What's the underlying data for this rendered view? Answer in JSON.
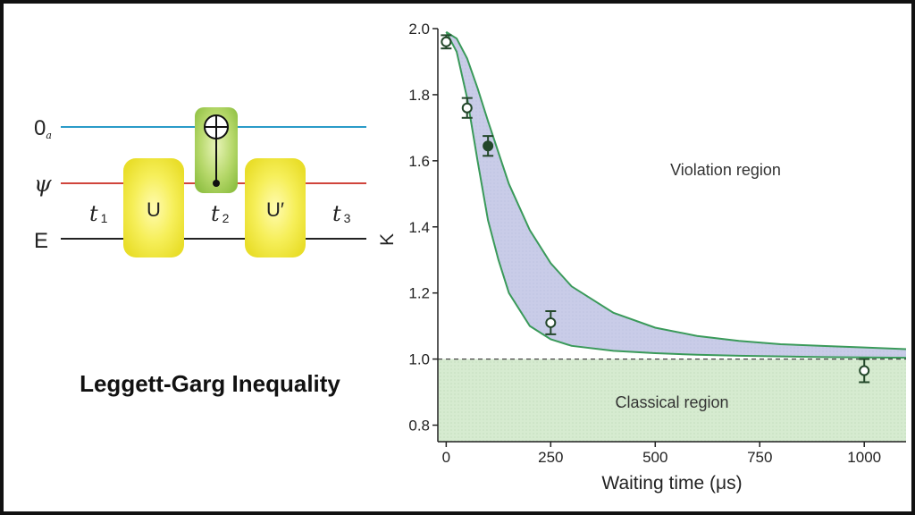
{
  "slide": {
    "caption": "Leggett-Garg Inequality"
  },
  "circuit": {
    "wires": [
      {
        "label": "0",
        "sub": "a",
        "color": "#2a9bc8"
      },
      {
        "label": "ψ",
        "sub": "",
        "color": "#d0443c"
      },
      {
        "label": "E",
        "sub": "",
        "color": "#222222"
      }
    ],
    "gates": [
      "U",
      "U′"
    ],
    "times": [
      {
        "base": "t",
        "sub": "1"
      },
      {
        "base": "t",
        "sub": "2"
      },
      {
        "base": "t",
        "sub": "3"
      }
    ],
    "colors": {
      "gate_yellow": "#f3ec3c",
      "cnot_green": "#9fcc4f"
    }
  },
  "chart_data": {
    "type": "line",
    "xlabel": "Waiting time (μs)",
    "ylabel": "K",
    "xlim": [
      -20,
      1100
    ],
    "ylim": [
      0.75,
      2.0
    ],
    "xticks": [
      0,
      250,
      500,
      750,
      1000
    ],
    "xtick_labels": [
      "0",
      "250",
      "500",
      "750",
      "1000"
    ],
    "yticks": [
      0.8,
      1.0,
      1.2,
      1.4,
      1.6,
      1.8,
      2.0
    ],
    "ytick_labels": [
      "0.8",
      "1.0",
      "1.2",
      "1.4",
      "1.6",
      "1.8",
      "2.0"
    ],
    "band_upper": {
      "x": [
        0,
        25,
        50,
        75,
        100,
        150,
        200,
        250,
        300,
        400,
        500,
        600,
        700,
        800,
        900,
        1000,
        1100
      ],
      "y": [
        1.99,
        1.97,
        1.91,
        1.82,
        1.72,
        1.53,
        1.39,
        1.29,
        1.22,
        1.14,
        1.095,
        1.07,
        1.055,
        1.045,
        1.04,
        1.035,
        1.03
      ]
    },
    "band_lower": {
      "x": [
        0,
        25,
        50,
        75,
        100,
        125,
        150,
        200,
        250,
        300,
        400,
        500,
        600,
        700,
        800,
        900,
        1000,
        1100
      ],
      "y": [
        1.99,
        1.93,
        1.79,
        1.6,
        1.42,
        1.3,
        1.2,
        1.1,
        1.06,
        1.04,
        1.025,
        1.018,
        1.013,
        1.01,
        1.008,
        1.006,
        1.005,
        1.004
      ]
    },
    "points": [
      {
        "x": 0,
        "y": 1.96,
        "err": 0.02,
        "filled": false
      },
      {
        "x": 50,
        "y": 1.76,
        "err": 0.03,
        "filled": false
      },
      {
        "x": 100,
        "y": 1.645,
        "err": 0.03,
        "filled": true
      },
      {
        "x": 250,
        "y": 1.11,
        "err": 0.035,
        "filled": false
      },
      {
        "x": 1000,
        "y": 0.965,
        "err": 0.035,
        "filled": false
      }
    ],
    "classical_bound": 1.0,
    "annotations": [
      "Violation region",
      "Classical region"
    ],
    "grid": false,
    "colors": {
      "band_fill": "#c9cce8",
      "band_edge": "#3a9a5a",
      "classical_fill": "#d6ebd0",
      "marker": "#23472a"
    }
  }
}
